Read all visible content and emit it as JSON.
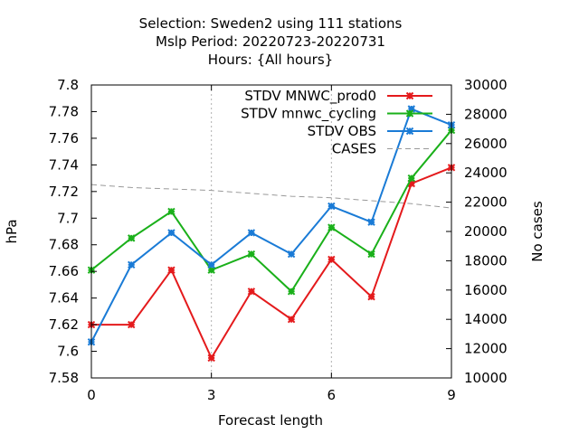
{
  "chart_data": {
    "type": "line",
    "title_lines": [
      "Selection: Sweden2 using   111 stations",
      "Mslp   Period: 20220723-20220731",
      "Hours: {All hours}"
    ],
    "xlabel": "Forecast length",
    "ylabel": "hPa",
    "y2label": "No cases",
    "x": [
      0,
      1,
      2,
      3,
      4,
      5,
      6,
      7,
      8,
      9
    ],
    "xlim": [
      0,
      9
    ],
    "ylim": [
      7.58,
      7.8
    ],
    "y2lim": [
      10000,
      30000
    ],
    "x_ticks": [
      "0",
      "3",
      "6",
      "9"
    ],
    "y_ticks": [
      "7.58",
      "7.6",
      "7.62",
      "7.64",
      "7.66",
      "7.68",
      "7.7",
      "7.72",
      "7.74",
      "7.76",
      "7.78",
      "7.8"
    ],
    "y2_ticks": [
      "10000",
      "12000",
      "14000",
      "16000",
      "18000",
      "20000",
      "22000",
      "24000",
      "26000",
      "28000",
      "30000"
    ],
    "grid": "vertical dashed lines at x ticks",
    "legend_position": "top-right",
    "series": [
      {
        "name": "STDV MNWC_prod0",
        "color": "#e41a1c",
        "axis": "left",
        "style": "solid",
        "marker": "x",
        "values": [
          7.62,
          7.62,
          7.661,
          7.595,
          7.645,
          7.624,
          7.669,
          7.641,
          7.726,
          7.738
        ]
      },
      {
        "name": "STDV mnwc_cycling",
        "color": "#1ab01a",
        "axis": "left",
        "style": "solid",
        "marker": "x",
        "values": [
          7.661,
          7.685,
          7.705,
          7.661,
          7.673,
          7.645,
          7.693,
          7.673,
          7.73,
          7.766
        ]
      },
      {
        "name": "STDV OBS",
        "color": "#1a7bd6",
        "axis": "left",
        "style": "solid",
        "marker": "x",
        "values": [
          7.607,
          7.665,
          7.689,
          7.665,
          7.689,
          7.673,
          7.709,
          7.697,
          7.782,
          7.77
        ]
      },
      {
        "name": "CASES",
        "color": "#999999",
        "axis": "right",
        "style": "dashed",
        "marker": "none",
        "values": [
          23200,
          23000,
          22900,
          22800,
          22600,
          22400,
          22300,
          22100,
          21900,
          21600
        ]
      }
    ]
  }
}
